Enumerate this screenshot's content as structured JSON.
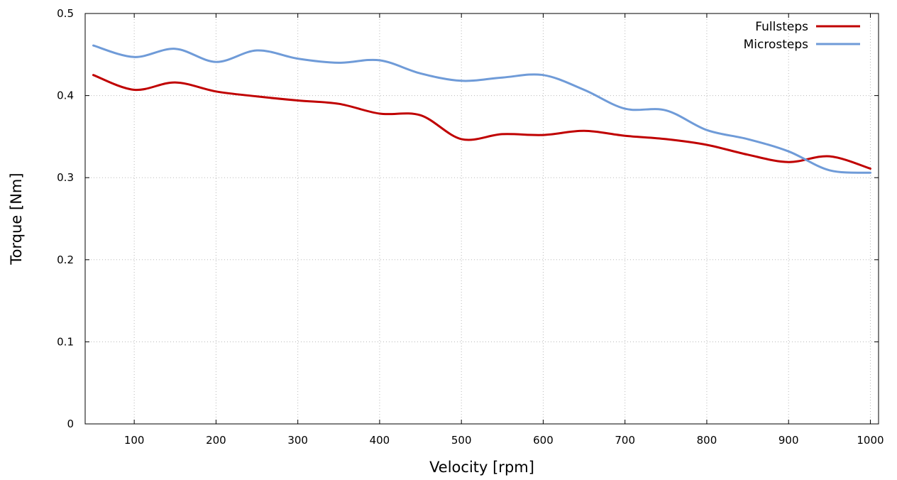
{
  "chart_data": {
    "type": "line",
    "title": "",
    "xlabel": "Velocity [rpm]",
    "ylabel": "Torque [Nm]",
    "xlim": [
      40,
      1010
    ],
    "ylim": [
      0,
      0.5
    ],
    "xticks": [
      100,
      200,
      300,
      400,
      500,
      600,
      700,
      800,
      900,
      1000
    ],
    "xtick_labels": [
      "100",
      "200",
      "300",
      "400",
      "500",
      "600",
      "700",
      "800",
      "900",
      "1000"
    ],
    "yticks": [
      0,
      0.1,
      0.2,
      0.3,
      0.4,
      0.5
    ],
    "ytick_labels": [
      "0",
      "0.1",
      "0.2",
      "0.3",
      "0.4",
      "0.5"
    ],
    "grid": true,
    "legend_position": "top-right",
    "series": [
      {
        "name": "Fullsteps",
        "color": "#c00000",
        "x": [
          50,
          100,
          150,
          200,
          250,
          300,
          350,
          400,
          450,
          500,
          550,
          600,
          650,
          700,
          750,
          800,
          850,
          900,
          950,
          1000
        ],
        "y": [
          0.425,
          0.407,
          0.416,
          0.405,
          0.399,
          0.394,
          0.39,
          0.378,
          0.376,
          0.347,
          0.353,
          0.352,
          0.357,
          0.351,
          0.347,
          0.34,
          0.328,
          0.319,
          0.326,
          0.311
        ]
      },
      {
        "name": "Microsteps",
        "color": "#6f9bd8",
        "x": [
          50,
          100,
          150,
          200,
          250,
          300,
          350,
          400,
          450,
          500,
          550,
          600,
          650,
          700,
          750,
          800,
          850,
          900,
          950,
          1000
        ],
        "y": [
          0.461,
          0.447,
          0.457,
          0.441,
          0.455,
          0.445,
          0.44,
          0.443,
          0.427,
          0.418,
          0.422,
          0.425,
          0.407,
          0.384,
          0.382,
          0.358,
          0.347,
          0.332,
          0.309,
          0.306
        ]
      }
    ]
  }
}
